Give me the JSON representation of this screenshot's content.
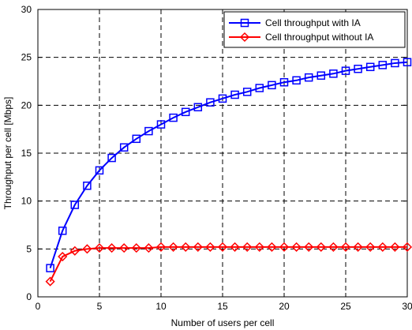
{
  "chart_data": {
    "type": "line",
    "xlabel": "Number of users per cell",
    "ylabel": "Throughput per cell [Mbps]",
    "xlim": [
      0,
      30
    ],
    "ylim": [
      0,
      30
    ],
    "xticks": [
      0,
      5,
      10,
      15,
      20,
      25,
      30
    ],
    "yticks": [
      0,
      5,
      10,
      15,
      20,
      25,
      30
    ],
    "grid": true,
    "legend_position": "top-right",
    "x": [
      1,
      2,
      3,
      4,
      5,
      6,
      7,
      8,
      9,
      10,
      11,
      12,
      13,
      14,
      15,
      16,
      17,
      18,
      19,
      20,
      21,
      22,
      23,
      24,
      25,
      26,
      27,
      28,
      29,
      30
    ],
    "series": [
      {
        "name": "Cell throughput with IA",
        "color": "#0000ff",
        "marker": "square",
        "values": [
          3.0,
          6.9,
          9.6,
          11.6,
          13.2,
          14.5,
          15.6,
          16.5,
          17.3,
          18.0,
          18.7,
          19.3,
          19.8,
          20.3,
          20.7,
          21.1,
          21.4,
          21.8,
          22.1,
          22.4,
          22.6,
          22.9,
          23.1,
          23.3,
          23.6,
          23.8,
          24.0,
          24.2,
          24.4,
          24.5
        ]
      },
      {
        "name": "Cell throughput without IA",
        "color": "#ff0000",
        "marker": "diamond",
        "values": [
          1.6,
          4.2,
          4.8,
          5.0,
          5.1,
          5.1,
          5.1,
          5.1,
          5.1,
          5.2,
          5.2,
          5.2,
          5.2,
          5.2,
          5.2,
          5.2,
          5.2,
          5.2,
          5.2,
          5.2,
          5.2,
          5.2,
          5.2,
          5.2,
          5.2,
          5.2,
          5.2,
          5.2,
          5.2,
          5.2
        ]
      }
    ]
  }
}
